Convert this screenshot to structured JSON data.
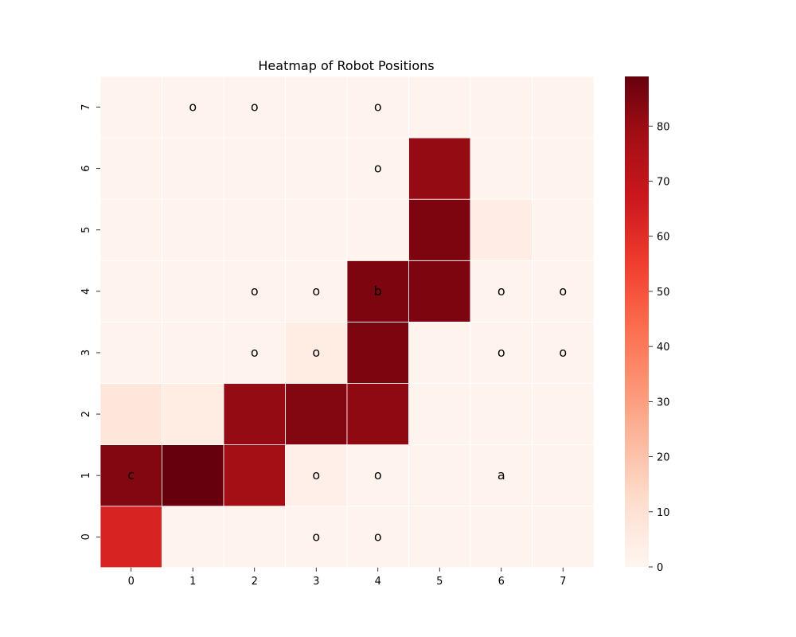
{
  "chart_data": {
    "type": "heatmap",
    "title": "Heatmap of Robot Positions",
    "xlabel": "",
    "ylabel": "",
    "x": [
      "0",
      "1",
      "2",
      "3",
      "4",
      "5",
      "6",
      "7"
    ],
    "y": [
      "0",
      "1",
      "2",
      "3",
      "4",
      "5",
      "6",
      "7"
    ],
    "values": [
      [
        63,
        1,
        1,
        1,
        1,
        1,
        1,
        1
      ],
      [
        84,
        89,
        78,
        3,
        1,
        1,
        1,
        1
      ],
      [
        8,
        5,
        81,
        84,
        82,
        1,
        1,
        1
      ],
      [
        1,
        1,
        1,
        5,
        85,
        1,
        1,
        1
      ],
      [
        1,
        1,
        1,
        1,
        85,
        85,
        1,
        1
      ],
      [
        1,
        1,
        1,
        1,
        1,
        85,
        4,
        1
      ],
      [
        1,
        1,
        1,
        1,
        1,
        81,
        1,
        1
      ],
      [
        1,
        1,
        1,
        1,
        1,
        1,
        1,
        1
      ]
    ],
    "annotations": [
      [
        "",
        "",
        "",
        "o",
        "o",
        "",
        "",
        ""
      ],
      [
        "c",
        "",
        "",
        "o",
        "o",
        "",
        "a",
        ""
      ],
      [
        "",
        "",
        "",
        "",
        "",
        "",
        "",
        ""
      ],
      [
        "",
        "",
        "o",
        "o",
        "",
        "",
        "o",
        "o"
      ],
      [
        "",
        "",
        "o",
        "o",
        "b",
        "",
        "o",
        "o"
      ],
      [
        "",
        "",
        "",
        "",
        "",
        "",
        "",
        ""
      ],
      [
        "",
        "",
        "",
        "",
        "o",
        "",
        "",
        ""
      ],
      [
        "",
        "o",
        "o",
        "",
        "o",
        "",
        "",
        ""
      ]
    ],
    "colorbar": {
      "colormap": "Reds",
      "range": [
        0,
        89
      ],
      "ticks": [
        0,
        10,
        20,
        30,
        40,
        50,
        60,
        70,
        80
      ]
    },
    "grid": false
  }
}
